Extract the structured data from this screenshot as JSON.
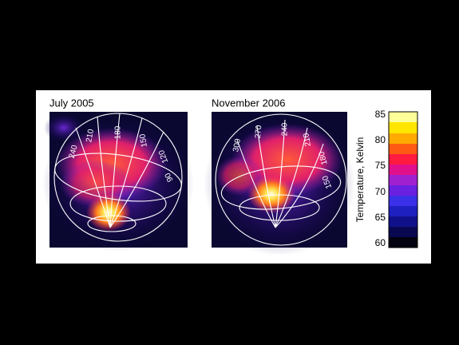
{
  "panels": [
    {
      "title": "July 2005",
      "longitudes": [
        "240",
        "210",
        "180",
        "150",
        "120",
        "90"
      ]
    },
    {
      "title": "November 2006",
      "longitudes": [
        "300",
        "270",
        "240",
        "210",
        "180",
        "150"
      ]
    }
  ],
  "colorbar": {
    "label": "Temperature, Kelvin",
    "ticks": [
      "85",
      "80",
      "75",
      "70",
      "65",
      "60"
    ]
  }
}
